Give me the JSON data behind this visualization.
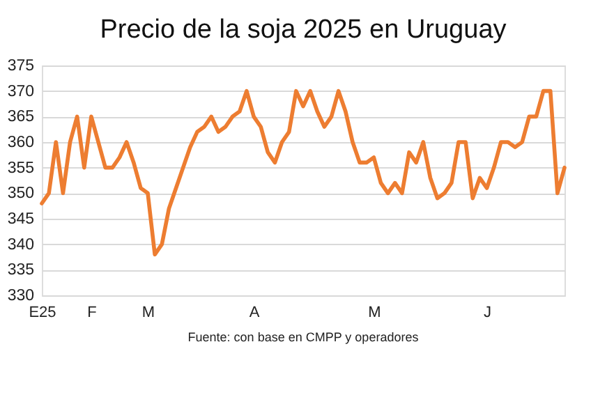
{
  "chart_data": {
    "type": "line",
    "title": "Precio de la soja 2025 en Uruguay",
    "annotations": [
      "Fuente: con base en CMPP y operadores"
    ],
    "categories": [
      "E25",
      null,
      null,
      null,
      null,
      null,
      null,
      "F",
      null,
      null,
      null,
      null,
      null,
      null,
      null,
      "M",
      null,
      null,
      null,
      null,
      null,
      null,
      null,
      null,
      null,
      null,
      null,
      null,
      null,
      null,
      "A",
      null,
      null,
      null,
      null,
      null,
      null,
      null,
      null,
      null,
      null,
      null,
      null,
      null,
      null,
      null,
      null,
      "M",
      null,
      null,
      null,
      null,
      null,
      null,
      null,
      null,
      null,
      null,
      null,
      null,
      null,
      null,
      null,
      "J",
      null,
      null,
      null,
      null,
      null,
      null,
      null,
      null,
      null,
      null,
      null
    ],
    "series": [
      {
        "color": "#ed7d31",
        "values": [
          348,
          350,
          360,
          350,
          360,
          365,
          355,
          365,
          360,
          355,
          355,
          357,
          360,
          356,
          351,
          350,
          338,
          340,
          347,
          351,
          355,
          359,
          362,
          363,
          365,
          362,
          363,
          365,
          366,
          370,
          365,
          363,
          358,
          356,
          360,
          362,
          370,
          367,
          370,
          366,
          363,
          365,
          370,
          366,
          360,
          356,
          356,
          357,
          352,
          350,
          352,
          350,
          358,
          356,
          360,
          353,
          349,
          350,
          352,
          360,
          360,
          349,
          353,
          351,
          355,
          360,
          360,
          359,
          360,
          365,
          365,
          370,
          370,
          350,
          355
        ]
      }
    ],
    "ylim": [
      330,
      375
    ],
    "yticks": [
      330,
      335,
      340,
      345,
      350,
      355,
      360,
      365,
      370,
      375
    ],
    "grid": "y",
    "marker": "none",
    "line_style": "solid"
  }
}
